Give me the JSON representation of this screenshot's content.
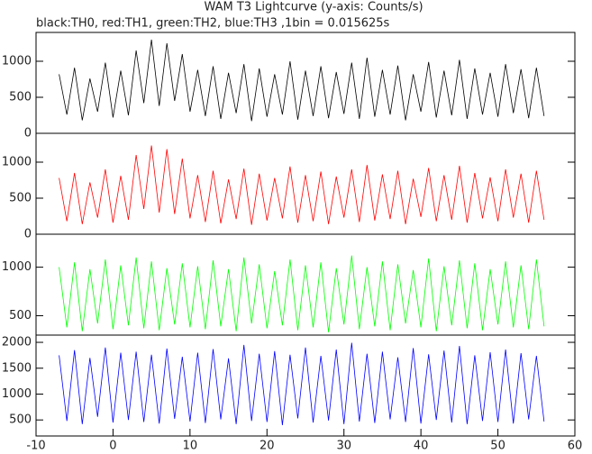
{
  "title": "WAM T3 Lightcurve (y-axis: Counts/s)",
  "subtitle": "black:TH0, red:TH1, green:TH2, blue:TH3 ,1bin = 0.015625s",
  "chart_data": [
    {
      "type": "line",
      "color": "#000000",
      "xlim": [
        -10,
        60
      ],
      "ylim": [
        0,
        1400
      ],
      "yticks": [
        0,
        500,
        1000
      ],
      "x": [
        -7,
        -6,
        -5,
        -4,
        -3,
        -2,
        -1,
        0,
        1,
        2,
        3,
        4,
        5,
        6,
        7,
        8,
        9,
        10,
        11,
        12,
        13,
        14,
        15,
        16,
        17,
        18,
        19,
        20,
        21,
        22,
        23,
        24,
        25,
        26,
        27,
        28,
        29,
        30,
        31,
        32,
        33,
        34,
        35,
        36,
        37,
        38,
        39,
        40,
        41,
        42,
        43,
        44,
        45,
        46,
        47,
        48,
        49,
        50,
        51,
        52,
        53,
        54,
        55,
        56
      ],
      "values": [
        820,
        260,
        910,
        180,
        760,
        300,
        980,
        220,
        870,
        250,
        1150,
        420,
        1300,
        380,
        1250,
        450,
        1100,
        300,
        880,
        240,
        930,
        200,
        840,
        280,
        960,
        170,
        900,
        230,
        820,
        260,
        1000,
        190,
        870,
        240,
        930,
        210,
        850,
        270,
        980,
        200,
        1050,
        230,
        880,
        260,
        940,
        180,
        820,
        300,
        990,
        220,
        870,
        250,
        1020,
        200,
        900,
        260,
        840,
        230,
        960,
        280,
        890,
        210,
        910,
        240
      ]
    },
    {
      "type": "line",
      "color": "#ff0000",
      "xlim": [
        -10,
        60
      ],
      "ylim": [
        0,
        1400
      ],
      "yticks": [
        0,
        500,
        1000
      ],
      "x": [
        -7,
        -6,
        -5,
        -4,
        -3,
        -2,
        -1,
        0,
        1,
        2,
        3,
        4,
        5,
        6,
        7,
        8,
        9,
        10,
        11,
        12,
        13,
        14,
        15,
        16,
        17,
        18,
        19,
        20,
        21,
        22,
        23,
        24,
        25,
        26,
        27,
        28,
        29,
        30,
        31,
        32,
        33,
        34,
        35,
        36,
        37,
        38,
        39,
        40,
        41,
        42,
        43,
        44,
        45,
        46,
        47,
        48,
        49,
        50,
        51,
        52,
        53,
        54,
        55,
        56
      ],
      "values": [
        780,
        180,
        850,
        140,
        720,
        230,
        900,
        160,
        810,
        200,
        1100,
        350,
        1230,
        300,
        1180,
        280,
        1050,
        220,
        820,
        170,
        880,
        150,
        760,
        210,
        910,
        130,
        840,
        190,
        780,
        220,
        940,
        160,
        820,
        180,
        870,
        140,
        800,
        230,
        900,
        170,
        960,
        190,
        830,
        210,
        880,
        140,
        770,
        240,
        920,
        180,
        820,
        200,
        950,
        160,
        850,
        220,
        790,
        180,
        900,
        230,
        840,
        160,
        880,
        200
      ]
    },
    {
      "type": "line",
      "color": "#00ff00",
      "xlim": [
        -10,
        60
      ],
      "ylim": [
        300,
        1340
      ],
      "yticks": [
        500,
        1000
      ],
      "x": [
        -7,
        -6,
        -5,
        -4,
        -3,
        -2,
        -1,
        0,
        1,
        2,
        3,
        4,
        5,
        6,
        7,
        8,
        9,
        10,
        11,
        12,
        13,
        14,
        15,
        16,
        17,
        18,
        19,
        20,
        21,
        22,
        23,
        24,
        25,
        26,
        27,
        28,
        29,
        30,
        31,
        32,
        33,
        34,
        35,
        36,
        37,
        38,
        39,
        40,
        41,
        42,
        43,
        44,
        45,
        46,
        47,
        48,
        49,
        50,
        51,
        52,
        53,
        54,
        55,
        56
      ],
      "values": [
        1000,
        380,
        1050,
        340,
        980,
        420,
        1080,
        360,
        1020,
        400,
        1100,
        370,
        1060,
        350,
        990,
        410,
        1040,
        380,
        1010,
        360,
        1070,
        390,
        980,
        340,
        1100,
        420,
        1030,
        370,
        960,
        400,
        1080,
        350,
        1020,
        380,
        1050,
        330,
        990,
        410,
        1120,
        360,
        1000,
        390,
        1060,
        350,
        1030,
        420,
        970,
        380,
        1090,
        340,
        1010,
        400,
        1070,
        370,
        1040,
        350,
        980,
        410,
        1060,
        380,
        1020,
        360,
        1080,
        390
      ]
    },
    {
      "type": "line",
      "color": "#0000ff",
      "xlim": [
        -10,
        60
      ],
      "ylim": [
        190,
        2140
      ],
      "yticks": [
        500,
        1000,
        1500,
        2000
      ],
      "xticks": [
        -10,
        0,
        10,
        20,
        30,
        40,
        50,
        60
      ],
      "x": [
        -7,
        -6,
        -5,
        -4,
        -3,
        -2,
        -1,
        0,
        1,
        2,
        3,
        4,
        5,
        6,
        7,
        8,
        9,
        10,
        11,
        12,
        13,
        14,
        15,
        16,
        17,
        18,
        19,
        20,
        21,
        22,
        23,
        24,
        25,
        26,
        27,
        28,
        29,
        30,
        31,
        32,
        33,
        34,
        35,
        36,
        37,
        38,
        39,
        40,
        41,
        42,
        43,
        44,
        45,
        46,
        47,
        48,
        49,
        50,
        51,
        52,
        53,
        54,
        55,
        56
      ],
      "values": [
        1750,
        480,
        1850,
        420,
        1700,
        560,
        1900,
        450,
        1800,
        500,
        1820,
        460,
        1760,
        430,
        1880,
        520,
        1720,
        470,
        1800,
        440,
        1870,
        510,
        1690,
        420,
        1950,
        480,
        1780,
        460,
        1830,
        400,
        1760,
        530,
        1900,
        450,
        1740,
        490,
        1860,
        420,
        1990,
        470,
        1780,
        440,
        1820,
        510,
        1710,
        460,
        1890,
        430,
        1770,
        500,
        1840,
        450,
        1930,
        420,
        1750,
        480,
        1810,
        460,
        1860,
        430,
        1790,
        510,
        1740,
        470
      ]
    }
  ]
}
